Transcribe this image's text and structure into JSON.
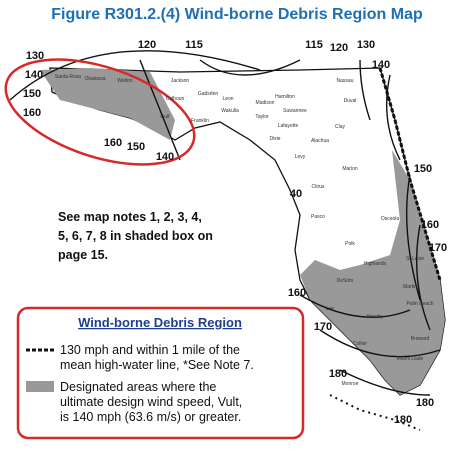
{
  "title": "Figure R301.2.(4) Wind-borne Debris Region Map",
  "contour_labels": [
    "130",
    "140",
    "150",
    "160",
    "160",
    "150",
    "140",
    "120",
    "115",
    "115",
    "120",
    "130",
    "140",
    "150",
    "160",
    "170",
    "160",
    "170",
    "180",
    "180",
    "180",
    "40"
  ],
  "county_labels": [
    "Santa Rosa",
    "Okaloosa",
    "Walton",
    "Jackson",
    "Calhoun",
    "Gulf",
    "Franklin",
    "Gadsden",
    "Leon",
    "Wakulla",
    "Madison",
    "Hamilton",
    "Suwannee",
    "Lafayette",
    "Taylor",
    "Dixie",
    "Levy",
    "Alachua",
    "Marion",
    "Nassau",
    "Duval",
    "Clay",
    "Citrus",
    "Pasco",
    "Polk",
    "Osceola",
    "Highlands",
    "St Lucie",
    "Martin",
    "Palm Beach",
    "Broward",
    "Miami Dade",
    "Collier",
    "Lee",
    "DeSoto",
    "Hendry",
    "Monroe"
  ],
  "note": [
    "See map notes 1, 2, 3, 4,",
    "5, 6, 7, 8 in shaded box on",
    "page 15."
  ],
  "legend": {
    "title": "Wind-borne Debris Region",
    "items": [
      [
        "130 mph and within 1 mile of the",
        "mean high-water line, *See Note 7."
      ],
      [
        "Designated areas where the",
        "ultimate design wind speed, Vult,",
        "is 140 mph  (63.6 m/s) or greater."
      ]
    ]
  }
}
